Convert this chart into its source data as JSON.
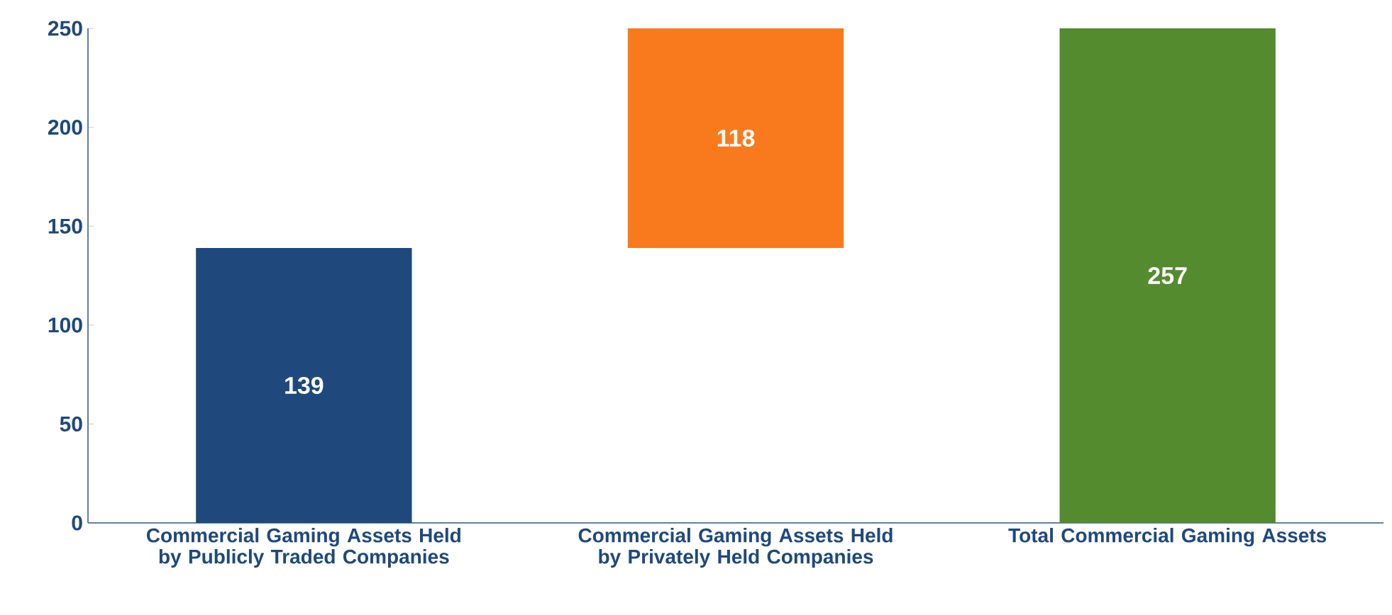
{
  "chart_data": {
    "type": "bar",
    "categories": [
      "Commercial Gaming Assets Held by Publicly Traded Companies",
      "Commercial Gaming Assets Held by Privately Held Companies",
      "Total Commercial Gaming Assets"
    ],
    "values": [
      139,
      118,
      257
    ],
    "base": [
      0,
      139,
      0
    ],
    "colors": [
      "#1f497d",
      "#f97a1c",
      "#548b2e"
    ],
    "data_labels": true,
    "ylim": [
      0,
      250
    ],
    "yticks": [
      0,
      50,
      100,
      150,
      200,
      250
    ]
  }
}
